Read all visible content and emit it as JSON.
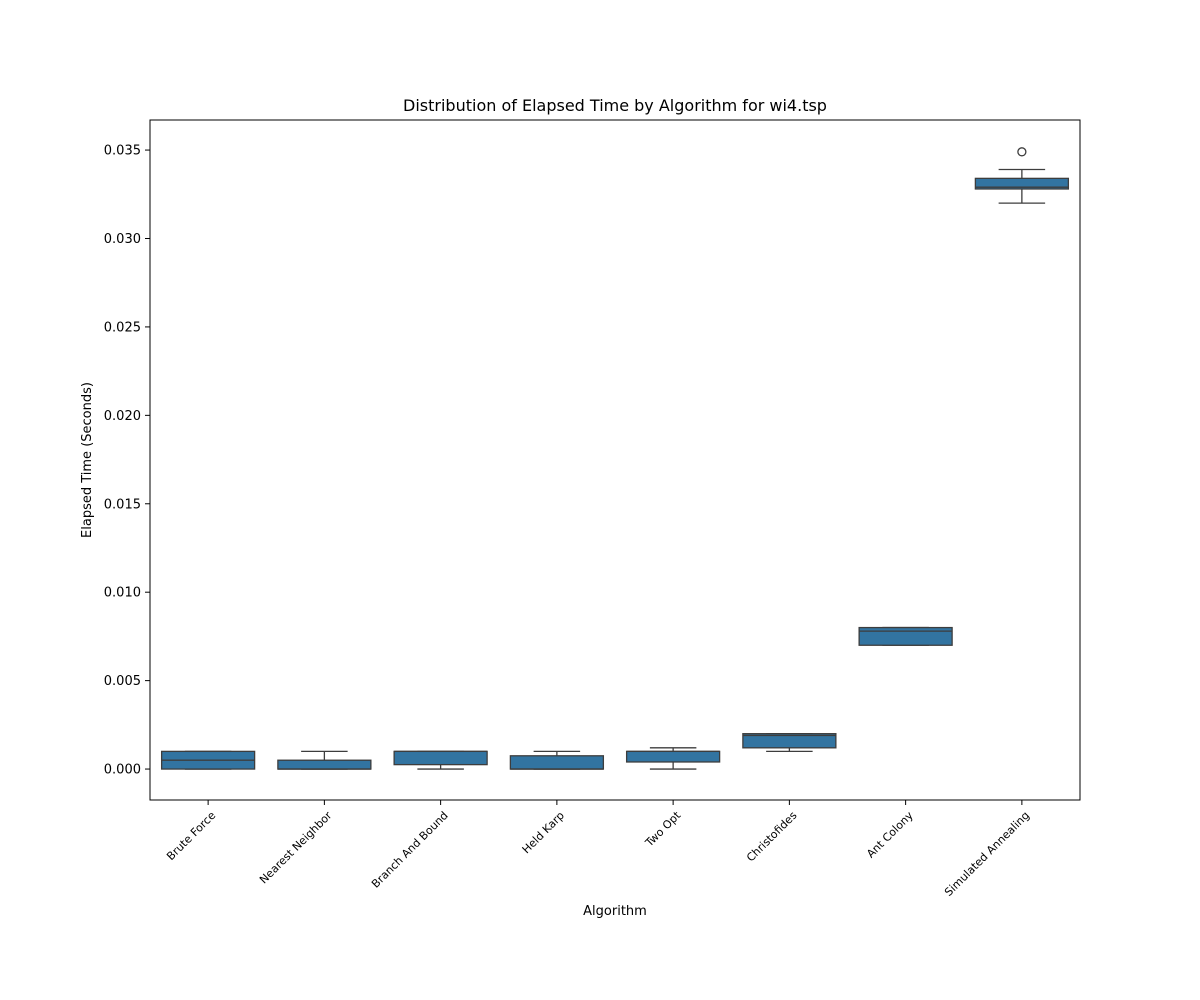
{
  "chart_data": {
    "type": "box",
    "title": "Distribution of Elapsed Time by Algorithm for wi4.tsp",
    "xlabel": "Algorithm",
    "ylabel": "Elapsed Time (Seconds)",
    "ylim": [
      -0.00175,
      0.0367
    ],
    "yticks": [
      0.0,
      0.005,
      0.01,
      0.015,
      0.02,
      0.025,
      0.03,
      0.035
    ],
    "ytick_labels": [
      "0.000",
      "0.005",
      "0.010",
      "0.015",
      "0.020",
      "0.025",
      "0.030",
      "0.035"
    ],
    "grid": false,
    "box_color": "#3274a1",
    "line_color": "#3d3d3d",
    "categories": [
      "Brute Force",
      "Nearest Neighbor",
      "Branch And Bound",
      "Held Karp",
      "Two Opt",
      "Christofides",
      "Ant Colony",
      "Simulated Annealing"
    ],
    "boxes": [
      {
        "whislo": 0.0,
        "q1": 0.0,
        "med": 0.0005,
        "q3": 0.001,
        "whishi": 0.001,
        "fliers": []
      },
      {
        "whislo": 0.0,
        "q1": 0.0,
        "med": 0.0,
        "q3": 0.0005,
        "whishi": 0.001,
        "fliers": []
      },
      {
        "whislo": 0.0,
        "q1": 0.00025,
        "med": 0.001,
        "q3": 0.001,
        "whishi": 0.001,
        "fliers": []
      },
      {
        "whislo": 0.0,
        "q1": 0.0,
        "med": 0.0,
        "q3": 0.00075,
        "whishi": 0.001,
        "fliers": []
      },
      {
        "whislo": 0.0,
        "q1": 0.0004,
        "med": 0.001,
        "q3": 0.001,
        "whishi": 0.0012,
        "fliers": []
      },
      {
        "whislo": 0.001,
        "q1": 0.0012,
        "med": 0.0019,
        "q3": 0.002,
        "whishi": 0.002,
        "fliers": []
      },
      {
        "whislo": 0.007,
        "q1": 0.007,
        "med": 0.0078,
        "q3": 0.008,
        "whishi": 0.008,
        "fliers": []
      },
      {
        "whislo": 0.032,
        "q1": 0.0328,
        "med": 0.0329,
        "q3": 0.0334,
        "whishi": 0.0339,
        "fliers": [
          0.0349
        ]
      }
    ]
  }
}
